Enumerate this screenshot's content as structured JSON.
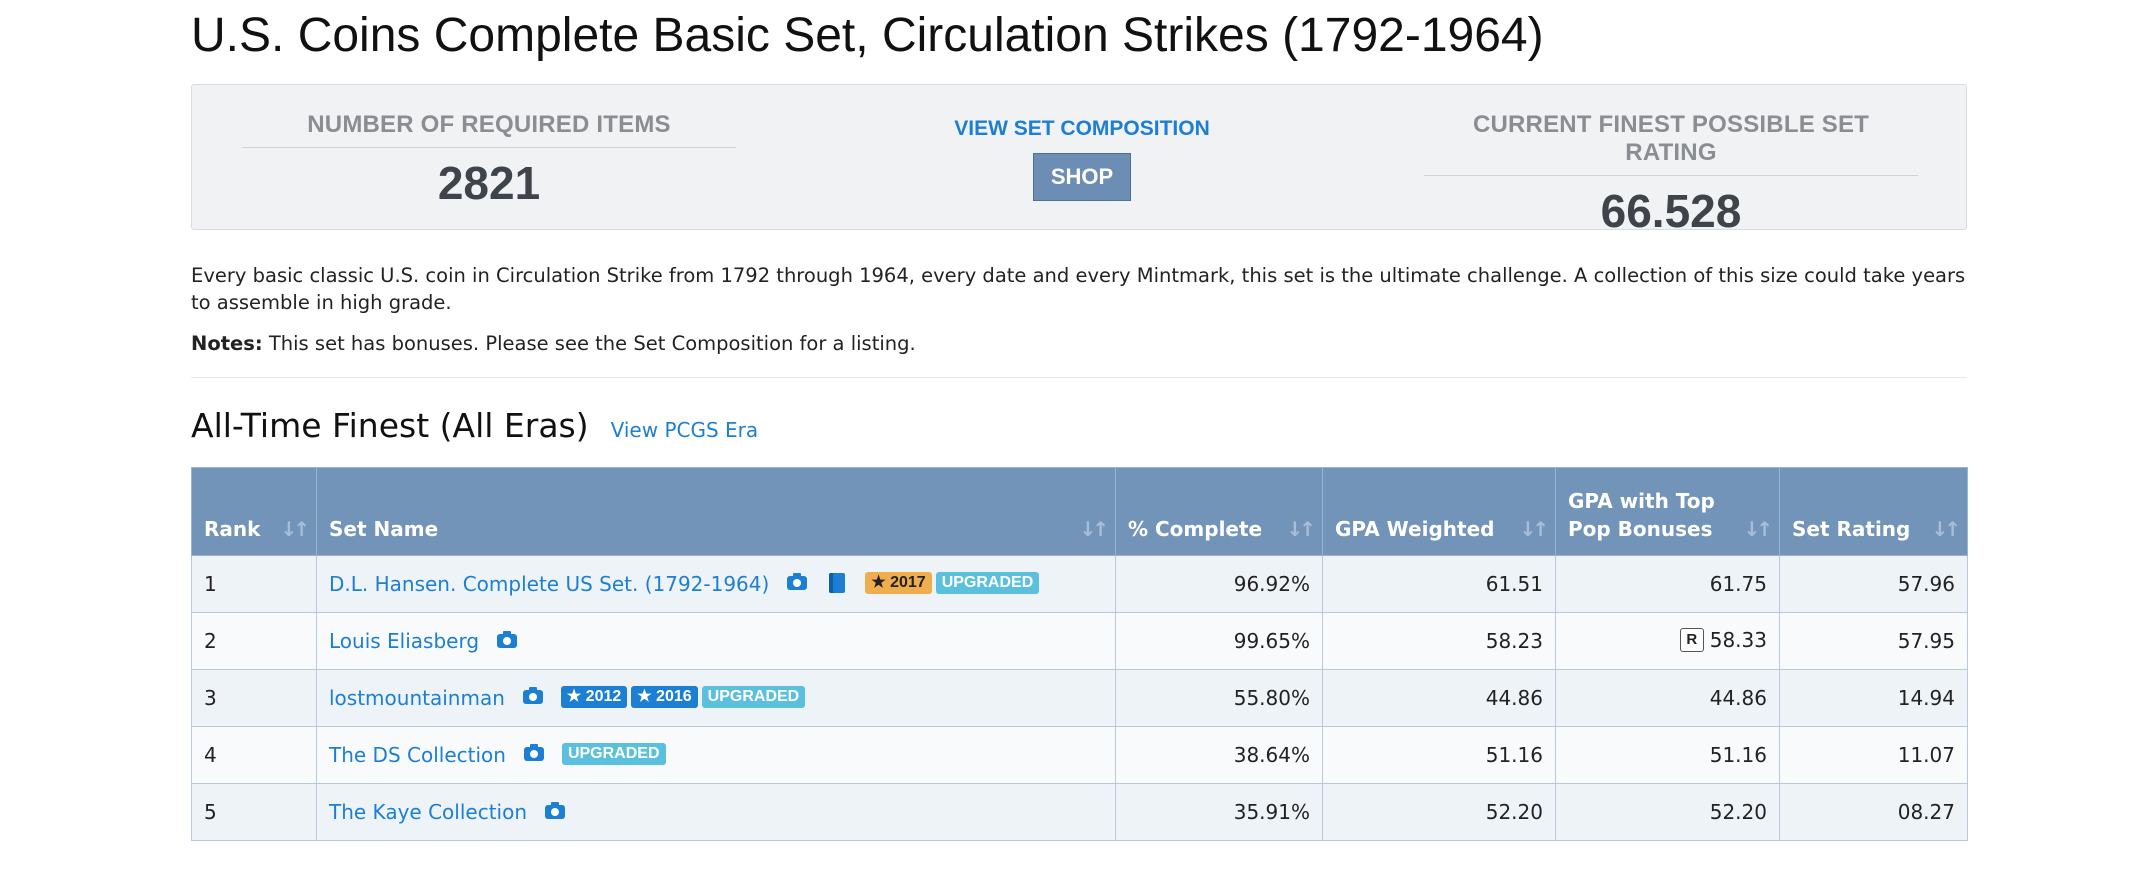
{
  "page": {
    "title": "U.S. Coins Complete Basic Set, Circulation Strikes (1792-1964)"
  },
  "stats": {
    "required_items_label": "NUMBER OF REQUIRED ITEMS",
    "required_items_value": "2821",
    "view_composition_label": "VIEW SET COMPOSITION",
    "shop_label": "SHOP",
    "finest_rating_label": "CURRENT FINEST POSSIBLE SET RATING",
    "finest_rating_value": "66.528"
  },
  "description": "Every basic classic U.S. coin in Circulation Strike from 1792 through 1964, every date and every Mintmark, this set is the ultimate challenge. A collection of this size could take years to assemble in high grade.",
  "notes": {
    "label": "Notes:",
    "text": " This set has bonuses. Please see the Set Composition for a listing."
  },
  "section": {
    "title": "All-Time Finest (All Eras)",
    "link": "View PCGS Era"
  },
  "table": {
    "headers": {
      "rank": "Rank",
      "set_name": "Set Name",
      "complete": "% Complete",
      "gpa_weighted": "GPA Weighted",
      "gpa_top_pop_line1": "GPA with Top",
      "gpa_top_pop_line2": "Pop Bonuses",
      "set_rating": "Set Rating"
    },
    "sort_icon": "sort-arrows-icon",
    "rows": [
      {
        "rank": "1",
        "name": "D.L. Hansen. Complete US Set. (1792-1964)",
        "year_badge": "★ 2017",
        "upgraded": "UPGRADED",
        "complete": "96.92%",
        "gpa_weighted": "61.51",
        "gpa_top_pop": "61.75",
        "set_rating": "57.96"
      },
      {
        "rank": "2",
        "name": "Louis Eliasberg",
        "r_badge": "R",
        "complete": "99.65%",
        "gpa_weighted": "58.23",
        "gpa_top_pop": "58.33",
        "set_rating": "57.95"
      },
      {
        "rank": "3",
        "name": "lostmountainman",
        "year_badge_1": "★ 2012",
        "year_badge_2": "★ 2016",
        "upgraded": "UPGRADED",
        "complete": "55.80%",
        "gpa_weighted": "44.86",
        "gpa_top_pop": "44.86",
        "set_rating": "14.94"
      },
      {
        "rank": "4",
        "name": "The DS Collection",
        "upgraded": "UPGRADED",
        "complete": "38.64%",
        "gpa_weighted": "51.16",
        "gpa_top_pop": "51.16",
        "set_rating": "11.07"
      },
      {
        "rank": "5",
        "name": "The Kaye Collection",
        "complete": "35.91%",
        "gpa_weighted": "52.20",
        "gpa_top_pop": "52.20",
        "set_rating": "08.27"
      }
    ]
  },
  "colors": {
    "link": "#1c7fd3",
    "table_header": "#7294b8",
    "badge_gold": "#f0ad4e",
    "badge_upgraded": "#5bc0de",
    "shop_button": "#6c8db4"
  }
}
